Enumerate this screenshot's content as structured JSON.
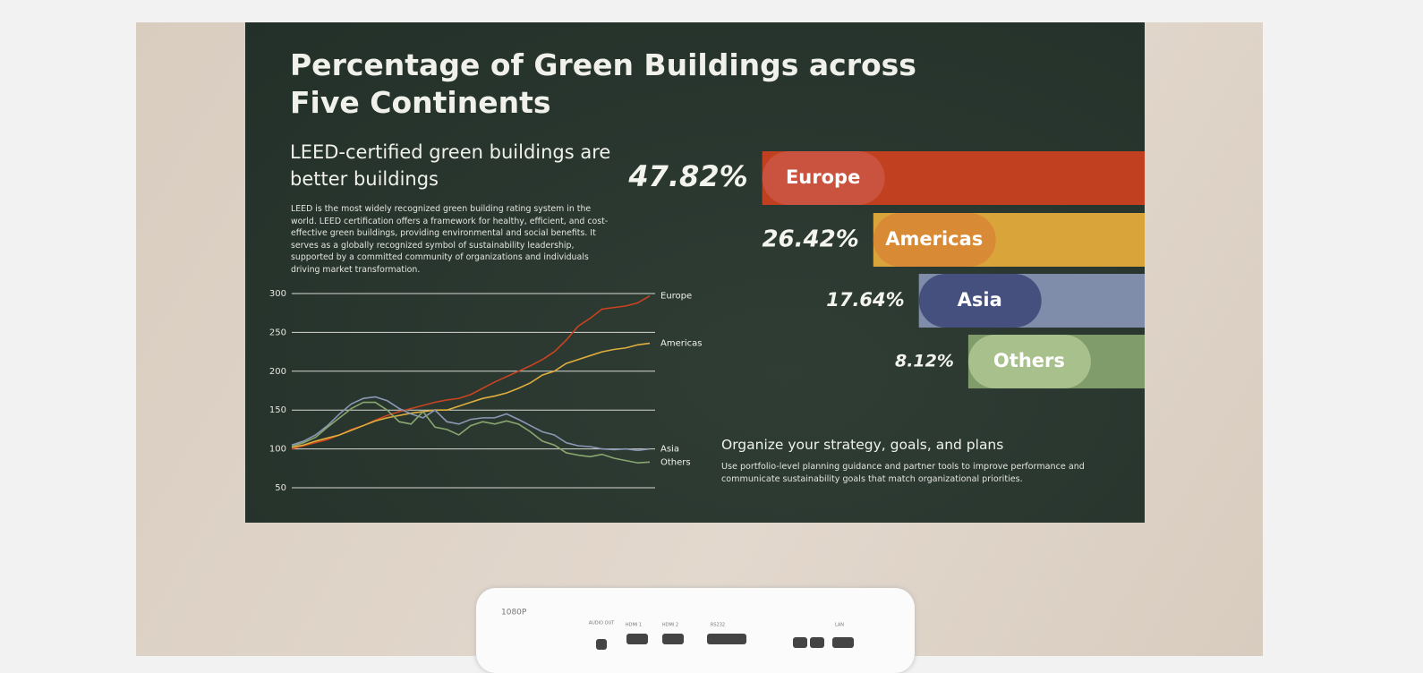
{
  "header": {
    "title": "Percentage of Green Buildings across Five Continents",
    "subtitle": "LEED-certified green buildings are better buildings",
    "body": "LEED is the most widely recognized green building rating system in the world. LEED certification offers a framework for healthy, efficient, and cost-effective green buildings, providing environmental and social benefits. It serves as a globally recognized symbol of sustainability leadership, supported by a committed community of organizations and individuals driving market transformation."
  },
  "chart_data": [
    {
      "type": "line",
      "ylim": [
        50,
        300
      ],
      "yticks": [
        50,
        100,
        150,
        200,
        250,
        300
      ],
      "grid": true,
      "series": [
        {
          "name": "Europe",
          "color": "#c8431f",
          "values": [
            100,
            104,
            108,
            112,
            118,
            125,
            130,
            137,
            143,
            148,
            152,
            156,
            160,
            163,
            165,
            170,
            178,
            186,
            193,
            200,
            207,
            215,
            225,
            240,
            258,
            268,
            280,
            282,
            284,
            288,
            297
          ]
        },
        {
          "name": "Americas",
          "color": "#e0ae3c",
          "values": [
            102,
            105,
            110,
            114,
            118,
            124,
            130,
            136,
            140,
            143,
            146,
            148,
            150,
            150,
            155,
            160,
            165,
            168,
            172,
            178,
            185,
            195,
            200,
            210,
            215,
            220,
            225,
            228,
            230,
            234,
            236
          ]
        },
        {
          "name": "Asia",
          "color": "#8a98b6",
          "values": [
            105,
            110,
            118,
            130,
            145,
            158,
            165,
            167,
            162,
            152,
            145,
            140,
            150,
            135,
            132,
            138,
            140,
            140,
            145,
            138,
            130,
            122,
            118,
            108,
            104,
            103,
            100,
            99,
            100,
            98,
            100
          ]
        },
        {
          "name": "Others",
          "color": "#8aa66f",
          "values": [
            103,
            108,
            115,
            128,
            140,
            152,
            160,
            160,
            150,
            135,
            132,
            148,
            128,
            125,
            118,
            130,
            135,
            132,
            136,
            132,
            122,
            110,
            105,
            95,
            92,
            90,
            93,
            88,
            85,
            82,
            83
          ]
        }
      ]
    },
    {
      "type": "bar",
      "categories": [
        "Europe",
        "Americas",
        "Asia",
        "Others"
      ],
      "values": [
        47.82,
        26.42,
        17.64,
        8.12
      ],
      "value_labels": [
        "47.82%",
        "26.42%",
        "17.64%",
        "8.12%"
      ],
      "colors": [
        "#c1401f",
        "#d9a43a",
        "#7f8daa",
        "#7f9c6a"
      ],
      "label_colors": [
        "#c9533f",
        "#d98a35",
        "#46507f",
        "#a7c08c"
      ]
    }
  ],
  "footer": {
    "title": "Organize your strategy, goals, and plans",
    "body": "Use portfolio-level planning guidance and partner tools to improve performance and communicate sustainability goals that match organizational priorities."
  },
  "device": {
    "labels": [
      "1080P",
      "AUDIO OUT",
      "HDMI 1",
      "HDMI 2",
      "RS232",
      "LAN"
    ]
  }
}
